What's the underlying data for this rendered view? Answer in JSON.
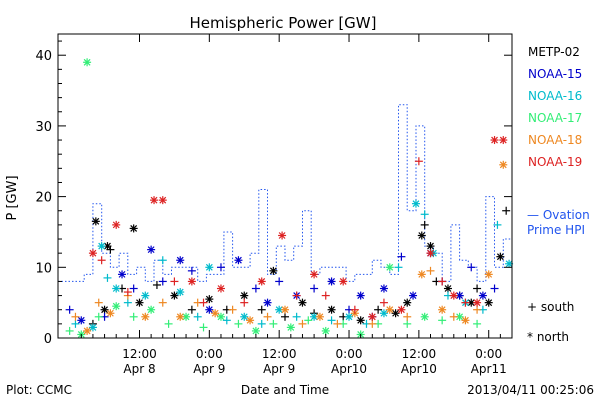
{
  "chart_data": {
    "type": "scatter",
    "title": "Hemispheric Power [GW]",
    "xlabel": "Date and Time",
    "ylabel": "P [GW]",
    "xlim": [
      -14,
      64
    ],
    "ylim": [
      0,
      43
    ],
    "yticks": [
      0,
      10,
      20,
      30,
      40
    ],
    "xticks": [
      {
        "x": 0,
        "line1": "12:00",
        "line2": "Apr 8"
      },
      {
        "x": 12,
        "line1": "0:00",
        "line2": "Apr 9"
      },
      {
        "x": 24,
        "line1": "12:00",
        "line2": "Apr 9"
      },
      {
        "x": 36,
        "line1": "0:00",
        "line2": "Apr10"
      },
      {
        "x": 48,
        "line1": "12:00",
        "line2": "Apr10"
      },
      {
        "x": 60,
        "line1": "0:00",
        "line2": "Apr11"
      }
    ],
    "legend": {
      "position": "right",
      "markers_legend": [
        {
          "symbol": "+",
          "label": "south"
        },
        {
          "symbol": "*",
          "label": "north"
        }
      ]
    },
    "series": [
      {
        "name": "METP-02",
        "color": "#000000",
        "points": [
          [
            -7.5,
            16.5,
            "*"
          ],
          [
            -5.5,
            13,
            "*"
          ],
          [
            -5,
            12.5,
            "+"
          ],
          [
            -1,
            15.5,
            "*"
          ],
          [
            -8,
            2,
            "+"
          ],
          [
            -6,
            4,
            "*"
          ],
          [
            -3,
            7,
            "+"
          ],
          [
            0,
            5,
            "*"
          ],
          [
            3,
            7.5,
            "+"
          ],
          [
            6,
            6,
            "*"
          ],
          [
            9,
            4,
            "+"
          ],
          [
            12,
            5.5,
            "*"
          ],
          [
            15,
            4,
            "+"
          ],
          [
            18,
            6,
            "*"
          ],
          [
            21,
            4,
            "+"
          ],
          [
            23,
            9.5,
            "*"
          ],
          [
            25,
            3,
            "+"
          ],
          [
            28,
            5,
            "*"
          ],
          [
            30,
            3.5,
            "+"
          ],
          [
            33,
            4,
            "*"
          ],
          [
            35,
            3,
            "+"
          ],
          [
            38,
            2.5,
            "*"
          ],
          [
            41,
            4,
            "+"
          ],
          [
            44,
            3.5,
            "*"
          ],
          [
            46,
            5,
            "*"
          ],
          [
            48.5,
            14.5,
            "*"
          ],
          [
            49,
            16,
            "+"
          ],
          [
            50,
            13,
            "*"
          ],
          [
            51,
            8,
            "+"
          ],
          [
            53,
            7,
            "*"
          ],
          [
            55,
            6,
            "+"
          ],
          [
            57,
            5,
            "*"
          ],
          [
            58,
            7,
            "+"
          ],
          [
            60,
            5,
            "*"
          ],
          [
            62,
            11.5,
            "*"
          ],
          [
            63,
            18,
            "+"
          ]
        ]
      },
      {
        "name": "NOAA-15",
        "color": "#0000cc",
        "points": [
          [
            -12,
            4,
            "+"
          ],
          [
            -10,
            2.5,
            "*"
          ],
          [
            -6,
            3,
            "+"
          ],
          [
            -3,
            9,
            "*"
          ],
          [
            -1,
            7,
            "+"
          ],
          [
            2,
            12.5,
            "*"
          ],
          [
            4,
            8,
            "+"
          ],
          [
            7,
            11,
            "*"
          ],
          [
            9,
            9.5,
            "+"
          ],
          [
            12,
            4,
            "*"
          ],
          [
            14,
            10,
            "+"
          ],
          [
            17,
            11,
            "*"
          ],
          [
            20,
            7,
            "+"
          ],
          [
            22,
            5,
            "*"
          ],
          [
            24,
            8,
            "+"
          ],
          [
            27,
            6,
            "*"
          ],
          [
            30,
            7,
            "+"
          ],
          [
            33,
            8,
            "*"
          ],
          [
            36,
            4,
            "+"
          ],
          [
            38,
            6,
            "*"
          ],
          [
            40,
            3,
            "+"
          ],
          [
            42,
            7,
            "*"
          ],
          [
            45,
            11.5,
            "+"
          ],
          [
            47,
            6,
            "*"
          ],
          [
            50,
            12,
            "*"
          ],
          [
            52,
            8,
            "+"
          ],
          [
            55,
            6,
            "*"
          ],
          [
            57,
            10,
            "+"
          ],
          [
            59,
            6,
            "*"
          ],
          [
            61,
            7,
            "+"
          ]
        ]
      },
      {
        "name": "NOAA-16",
        "color": "#00bbcc",
        "points": [
          [
            -11,
            2,
            "+"
          ],
          [
            -8,
            1.5,
            "*"
          ],
          [
            -6.5,
            13,
            "*"
          ],
          [
            -5.5,
            8.5,
            "+"
          ],
          [
            -4,
            7,
            "*"
          ],
          [
            -2,
            5,
            "+"
          ],
          [
            1,
            6,
            "*"
          ],
          [
            4,
            11,
            "+"
          ],
          [
            7,
            6.5,
            "*"
          ],
          [
            10,
            3,
            "+"
          ],
          [
            12,
            10,
            "*"
          ],
          [
            15,
            2.5,
            "+"
          ],
          [
            18,
            3,
            "*"
          ],
          [
            21,
            2,
            "+"
          ],
          [
            24,
            4,
            "*"
          ],
          [
            27,
            3,
            "+"
          ],
          [
            30,
            3,
            "*"
          ],
          [
            33,
            2.5,
            "+"
          ],
          [
            36,
            3,
            "*"
          ],
          [
            39,
            2,
            "+"
          ],
          [
            42,
            3.5,
            "*"
          ],
          [
            44.5,
            10,
            "+"
          ],
          [
            47.5,
            19,
            "*"
          ],
          [
            49,
            17.5,
            "+"
          ],
          [
            50.5,
            12,
            "*"
          ],
          [
            53,
            6,
            "+"
          ],
          [
            56,
            5,
            "*"
          ],
          [
            59,
            4,
            "+"
          ],
          [
            61.5,
            16,
            "+"
          ],
          [
            63.5,
            10.5,
            "*"
          ]
        ]
      },
      {
        "name": "NOAA-17",
        "color": "#33ee77",
        "points": [
          [
            -9,
            39,
            "*"
          ],
          [
            -12,
            1,
            "+"
          ],
          [
            -10,
            0.5,
            "*"
          ],
          [
            -7,
            3,
            "+"
          ],
          [
            -4,
            4.5,
            "*"
          ],
          [
            -1,
            3,
            "+"
          ],
          [
            2,
            4,
            "*"
          ],
          [
            5,
            2,
            "+"
          ],
          [
            8,
            3,
            "*"
          ],
          [
            11,
            1.5,
            "+"
          ],
          [
            14,
            3,
            "*"
          ],
          [
            17,
            2,
            "+"
          ],
          [
            20,
            1,
            "*"
          ],
          [
            23,
            2,
            "+"
          ],
          [
            26,
            1.5,
            "*"
          ],
          [
            29,
            2.5,
            "+"
          ],
          [
            32,
            1,
            "*"
          ],
          [
            35,
            2,
            "+"
          ],
          [
            38,
            0.5,
            "*"
          ],
          [
            41,
            2,
            "+"
          ],
          [
            43,
            10,
            "*"
          ],
          [
            46,
            2,
            "+"
          ],
          [
            49,
            3,
            "*"
          ],
          [
            52,
            2.5,
            "+"
          ],
          [
            55,
            3,
            "*"
          ],
          [
            58,
            2,
            "+"
          ]
        ]
      },
      {
        "name": "NOAA-18",
        "color": "#ee8822",
        "points": [
          [
            -11,
            3,
            "+"
          ],
          [
            -9,
            1,
            "*"
          ],
          [
            -7,
            5,
            "+"
          ],
          [
            -5,
            3.5,
            "*"
          ],
          [
            -2,
            6,
            "+"
          ],
          [
            1,
            3,
            "*"
          ],
          [
            4,
            5,
            "+"
          ],
          [
            7,
            3,
            "*"
          ],
          [
            10,
            5,
            "+"
          ],
          [
            13,
            3.5,
            "*"
          ],
          [
            16,
            4,
            "+"
          ],
          [
            19,
            2.5,
            "*"
          ],
          [
            22,
            3,
            "+"
          ],
          [
            25,
            4,
            "*"
          ],
          [
            28,
            2,
            "+"
          ],
          [
            31,
            3,
            "*"
          ],
          [
            34,
            2,
            "+"
          ],
          [
            37,
            3.5,
            "*"
          ],
          [
            40,
            2,
            "+"
          ],
          [
            43,
            4,
            "*"
          ],
          [
            46,
            3,
            "+"
          ],
          [
            48.5,
            9,
            "*"
          ],
          [
            50,
            9.5,
            "+"
          ],
          [
            52,
            4,
            "*"
          ],
          [
            54,
            3,
            "+"
          ],
          [
            56,
            2.5,
            "*"
          ],
          [
            58,
            4,
            "+"
          ],
          [
            60,
            9,
            "*"
          ],
          [
            62.5,
            24.5,
            "*"
          ]
        ]
      },
      {
        "name": "NOAA-19",
        "color": "#dd2222",
        "points": [
          [
            -8,
            12,
            "*"
          ],
          [
            -6.5,
            11,
            "+"
          ],
          [
            -4,
            16,
            "*"
          ],
          [
            -2,
            6.5,
            "+"
          ],
          [
            2.5,
            19.5,
            "*"
          ],
          [
            4,
            19.5,
            "*"
          ],
          [
            6,
            8,
            "+"
          ],
          [
            9,
            8,
            "*"
          ],
          [
            11,
            5,
            "+"
          ],
          [
            14,
            7,
            "*"
          ],
          [
            18,
            5,
            "+"
          ],
          [
            21,
            8,
            "*"
          ],
          [
            24.5,
            14.5,
            "*"
          ],
          [
            27,
            6,
            "+"
          ],
          [
            30,
            9,
            "*"
          ],
          [
            32,
            6,
            "+"
          ],
          [
            35,
            8,
            "*"
          ],
          [
            37,
            4,
            "+"
          ],
          [
            40,
            3,
            "*"
          ],
          [
            42,
            5,
            "+"
          ],
          [
            45,
            4,
            "*"
          ],
          [
            48,
            25,
            "+"
          ],
          [
            50,
            12,
            "*"
          ],
          [
            52,
            8,
            "+"
          ],
          [
            54,
            6,
            "*"
          ],
          [
            56,
            5,
            "+"
          ],
          [
            58,
            5,
            "*"
          ],
          [
            61,
            28,
            "*"
          ],
          [
            62.5,
            28,
            "*"
          ]
        ]
      }
    ],
    "ovation": {
      "name": "— Ovation Prime HPI",
      "label_line1": "— Ovation",
      "label_line2": "Prime HPI",
      "color": "#2255ee",
      "step_x": [
        -14,
        -12.5,
        -11,
        -9.5,
        -8,
        -6.5,
        -5,
        -3.5,
        -2,
        -0.5,
        1,
        2.5,
        4,
        5.5,
        7,
        8.5,
        10,
        11.5,
        13,
        14.5,
        16,
        17.5,
        19,
        20.5,
        22,
        23.5,
        25,
        26.5,
        28,
        29.5,
        31,
        32.5,
        34,
        35.5,
        37,
        38.5,
        40,
        41.5,
        43,
        44.5,
        46,
        47.5,
        49,
        50.5,
        52,
        53.5,
        55,
        56.5,
        58,
        59.5,
        61,
        62.5,
        64
      ],
      "step_y": [
        8,
        8,
        8,
        9,
        19,
        12,
        10,
        12,
        9,
        10,
        8,
        11,
        9,
        10,
        10,
        10,
        8,
        9,
        9,
        15,
        10,
        10,
        12,
        21,
        9,
        13,
        11,
        13,
        18,
        9,
        10,
        10,
        10,
        8,
        9,
        9,
        11,
        10,
        9,
        33,
        18,
        30,
        13,
        12,
        8,
        16,
        11,
        10,
        8,
        20,
        10,
        14
      ]
    },
    "footer": {
      "plot_by": "Plot: CCMC",
      "timestamp": "2013/04/11 00:25:06"
    }
  }
}
